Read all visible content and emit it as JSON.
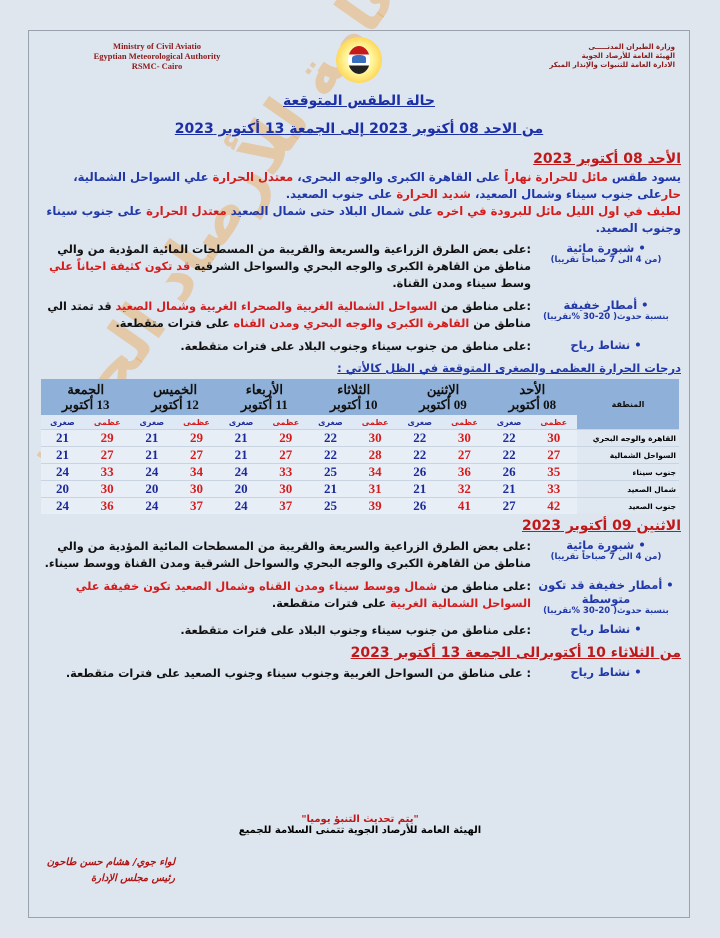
{
  "header": {
    "en_lines": [
      "Ministry of Civil Aviatio",
      "Egyptian Meteorological Authority",
      "RSMC- Cairo"
    ],
    "ar_lines": [
      "وزارة الطيران المدنـــــى",
      "الهيئة العامة للأرصاد الجوية",
      "الادارة العامة للتنبوات والإنذار المبكر"
    ],
    "title": "حالة الطقس المتوقعة",
    "subtitle": "من  الاحد 08 أكتوبر 2023  إلى الجمعة 13 أكتوبر 2023"
  },
  "watermark": "الهيئة العامة للأرصاد الجوية",
  "colors": {
    "blue": "#2138a8",
    "red": "#d41c1c",
    "black": "#111111",
    "heading_red": "#c01818"
  },
  "day1": {
    "heading": "الأحد 08 أكتوبر 2023",
    "paragraphs": [
      [
        {
          "t": "يسود طقس ",
          "c": "blue"
        },
        {
          "t": "مائل للحرارة نهاراً",
          "c": "red"
        },
        {
          "t": " على القاهرة الكبرى والوجه البحرى، ",
          "c": "blue"
        },
        {
          "t": "معتدل الحرارة",
          "c": "red"
        },
        {
          "t": " علي السواحل الشمالية، ",
          "c": "blue"
        },
        {
          "t": "حار",
          "c": "red"
        },
        {
          "t": "على جنوب سيناء وشمال الصعيد، ",
          "c": "blue"
        },
        {
          "t": "شديد الحرارة",
          "c": "red"
        },
        {
          "t": " على جنوب الصعيد.",
          "c": "blue"
        }
      ],
      [
        {
          "t": "لطيف في اول الليل مائل للبرودة في اخره",
          "c": "red"
        },
        {
          "t": " على شمال البلاد حتى شمال الصعيد ",
          "c": "blue"
        },
        {
          "t": "معتدل الحرارة",
          "c": "red"
        },
        {
          "t": " على جنوب سيناء وجنوب الصعيد.",
          "c": "blue"
        }
      ]
    ],
    "items": [
      {
        "label": "شبورة مائية",
        "note": "(من 4 الى 7 صباحاً تقريبا)",
        "text": [
          {
            "t": ":على بعض الطرق الزراعية والسريعة والقريبة من المسطحات المائية المؤدية من والي مناطق من القاهرة الكبرى والوجه البحري والسواحل الشرقية ",
            "c": "black"
          },
          {
            "t": "قد تكون كثيفة احياناً علي",
            "c": "red"
          },
          {
            "t": " وسط سيناء ومدن القناة.",
            "c": "black"
          }
        ]
      },
      {
        "label": "أمطار خفيفة",
        "note": "بنسبة حدوث( 20-30 %تقريبا)",
        "text": [
          {
            "t": ":على مناطق من ",
            "c": "black"
          },
          {
            "t": "السواحل الشمالية الغربية والصحراء الغربية وشمال الصعيد",
            "c": "red"
          },
          {
            "t": " قد تمتد الي مناطق من ",
            "c": "black"
          },
          {
            "t": "القاهرة الكبرى والوجه البحري ومدن القناه",
            "c": "red"
          },
          {
            "t": " على فترات متقطعة.",
            "c": "black"
          }
        ]
      },
      {
        "label": "نشاط رياح",
        "note": "",
        "text": [
          {
            "t": ":على مناطق من جنوب سيناء وجنوب البلاد على فترات متقطعة.",
            "c": "black"
          }
        ]
      }
    ]
  },
  "table_caption": "درجات الحرارة العظمى والصغرى المتوقعة في الظل كالأتي :",
  "table": {
    "region_header": "المنطقة",
    "max_label": "عظمى",
    "min_label": "صغرى",
    "days": [
      {
        "name": "الأحد",
        "date": "08 أكتوبر"
      },
      {
        "name": "الإثنين",
        "date": "09 أكتوبر"
      },
      {
        "name": "الثلاثاء",
        "date": "10 أكتوبر"
      },
      {
        "name": "الأربعاء",
        "date": "11 أكتوبر"
      },
      {
        "name": "الخميس",
        "date": "12 أكتوبر"
      },
      {
        "name": "الجمعة",
        "date": "13 أكتوبر"
      }
    ],
    "rows": [
      {
        "region": "القاهرة والوجه البحري",
        "values": [
          [
            30,
            22
          ],
          [
            30,
            22
          ],
          [
            30,
            22
          ],
          [
            29,
            21
          ],
          [
            29,
            21
          ],
          [
            29,
            21
          ]
        ]
      },
      {
        "region": "السواحل الشمالية",
        "values": [
          [
            27,
            22
          ],
          [
            27,
            22
          ],
          [
            28,
            22
          ],
          [
            27,
            21
          ],
          [
            27,
            21
          ],
          [
            27,
            21
          ]
        ]
      },
      {
        "region": "جنوب سيناء",
        "values": [
          [
            35,
            26
          ],
          [
            36,
            26
          ],
          [
            34,
            25
          ],
          [
            33,
            24
          ],
          [
            34,
            24
          ],
          [
            33,
            24
          ]
        ]
      },
      {
        "region": "شمال الصعيد",
        "values": [
          [
            33,
            21
          ],
          [
            32,
            21
          ],
          [
            31,
            21
          ],
          [
            30,
            20
          ],
          [
            30,
            20
          ],
          [
            30,
            20
          ]
        ]
      },
      {
        "region": "جنوب الصعيد",
        "values": [
          [
            42,
            27
          ],
          [
            41,
            26
          ],
          [
            39,
            25
          ],
          [
            37,
            24
          ],
          [
            37,
            24
          ],
          [
            36,
            24
          ]
        ]
      }
    ]
  },
  "day2": {
    "heading": "الاثنين 09 أكتوبر 2023",
    "paragraphs": [],
    "items": [
      {
        "label": "شبورة مائية",
        "note": "(من 4 الى 7 صباحاً تقريبا)",
        "text": [
          {
            "t": ":على بعض الطرق الزراعية والسريعة والقريبة من المسطحات المائية المؤدية من والي مناطق من القاهرة الكبرى والوجه البحري والسواحل الشرقية ومدن القناة ووسط سيناء.",
            "c": "black"
          }
        ]
      },
      {
        "label": "أمطار خفيفة قد تكون متوسطة",
        "note": "بنسبة حدوث( 20-30 %تقريبا)",
        "text": [
          {
            "t": ":على مناطق من ",
            "c": "black"
          },
          {
            "t": "شمال ووسط سيناء ومدن القناه وشمال الصعيد تكون خفيفة علي السواحل الشمالية الغربية",
            "c": "red"
          },
          {
            "t": " على فترات متقطعة.",
            "c": "black"
          }
        ]
      },
      {
        "label": "نشاط رياح",
        "note": "",
        "text": [
          {
            "t": ":على مناطق من جنوب سيناء وجنوب البلاد على فترات متقطعة.",
            "c": "black"
          }
        ]
      }
    ]
  },
  "range": {
    "heading": "من الثلاثاء 10 أكتوبرالى الجمعة 13 أكتوبر 2023",
    "paragraphs": [],
    "items": [
      {
        "label": "نشاط رياح",
        "note": "",
        "text": [
          {
            "t": ": على مناطق من السواحل الغربية وجنوب سيناء وجنوب الصعيد على فترات متقطعة.",
            "c": "black"
          }
        ]
      }
    ]
  },
  "footer": {
    "update_note": "\"يتم تحديث التنبؤ يوميا\"",
    "wish": "الهيئة العامة للأرصاد الجوية تتمنى السلامة للجميع",
    "signature_name": "لواء جوي/ هشام حسن طاحون",
    "signature_title": "رئيس مجلس الإدارة"
  }
}
